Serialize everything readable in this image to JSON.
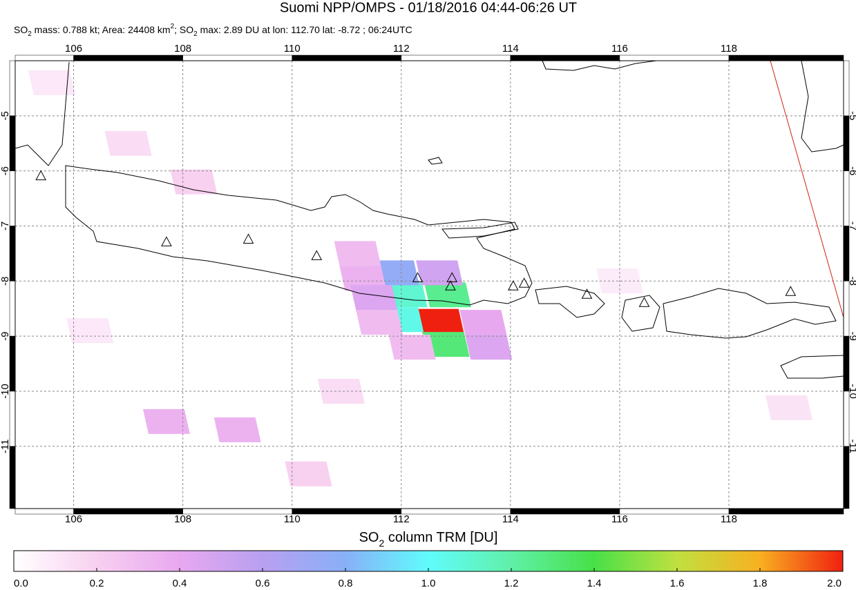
{
  "chart_data": {
    "type": "map",
    "title": "Suomi NPP/OMPS - 01/18/2016 04:44-06:26 UT",
    "subtitle": [
      "SO",
      "2",
      " mass: 0.788 kt; Area: 24408 km",
      "2",
      "; SO",
      "2",
      " max: 2.89 DU at lon: 112.70 lat: -8.72 ; 06:24UTC"
    ],
    "xlim": [
      104.93,
      120.1
    ],
    "ylim": [
      -12.13,
      -4.0
    ],
    "xticks": [
      106,
      108,
      110,
      112,
      114,
      116,
      118
    ],
    "yticks": [
      -5,
      -6,
      -7,
      -8,
      -9,
      -10,
      -11
    ],
    "grid": true,
    "pixels": {
      "lon": [
        112.72,
        112.82,
        111.98,
        112.05,
        112.85,
        111.9,
        112.7,
        111.2,
        111.3,
        111.5,
        111.6,
        112.2,
        113.5,
        113.6,
        107.7,
        109.0,
        108.2,
        107.0,
        105.6,
        110.3,
        119.1,
        116.0,
        110.9,
        106.3
      ],
      "lat": [
        -8.73,
        -9.15,
        -8.7,
        -8.25,
        -8.25,
        -7.85,
        -7.85,
        -7.5,
        -7.95,
        -8.3,
        -8.75,
        -9.2,
        -8.75,
        -9.2,
        -10.55,
        -10.7,
        -6.2,
        -5.5,
        -4.4,
        -11.5,
        -10.3,
        -8.0,
        -10.0,
        -8.9
      ],
      "values": [
        2.89,
        1.3,
        1.05,
        1.1,
        1.25,
        0.75,
        0.5,
        0.3,
        0.35,
        0.45,
        0.3,
        0.3,
        0.4,
        0.45,
        0.35,
        0.35,
        0.2,
        0.15,
        0.1,
        0.2,
        0.12,
        0.08,
        0.15,
        0.1
      ]
    },
    "volcanoes": {
      "lon": [
        105.4,
        107.7,
        109.2,
        110.45,
        112.3,
        112.93,
        112.9,
        114.05,
        114.25,
        115.4,
        116.45,
        119.13
      ],
      "lat": [
        -6.1,
        -7.3,
        -7.25,
        -7.55,
        -7.95,
        -7.95,
        -8.1,
        -8.1,
        -8.05,
        -8.25,
        -8.4,
        -8.2
      ]
    },
    "colorbar": {
      "label": [
        "SO",
        "2",
        " column TRM [DU]"
      ],
      "clim": [
        0,
        2
      ],
      "ticks": [
        {
          "value": 0,
          "label": "0.0"
        },
        {
          "value": 0.2,
          "label": "0.2"
        },
        {
          "value": 0.4,
          "label": "0.4"
        },
        {
          "value": 0.6,
          "label": "0.6"
        },
        {
          "value": 0.8,
          "label": "0.8"
        },
        {
          "value": 1,
          "label": "1.0"
        },
        {
          "value": 1.2,
          "label": "1.2"
        },
        {
          "value": 1.4,
          "label": "1.4"
        },
        {
          "value": 1.6,
          "label": "1.6"
        },
        {
          "value": 1.8,
          "label": "1.8"
        },
        {
          "value": 2,
          "label": "2.0"
        }
      ],
      "colors": [
        "#ffffff",
        "#f8d0f0",
        "#e8a8f0",
        "#b8a0f0",
        "#88b0f8",
        "#60fcfc",
        "#60f0a8",
        "#48e048",
        "#c0e040",
        "#f8b020",
        "#f02010"
      ]
    }
  }
}
